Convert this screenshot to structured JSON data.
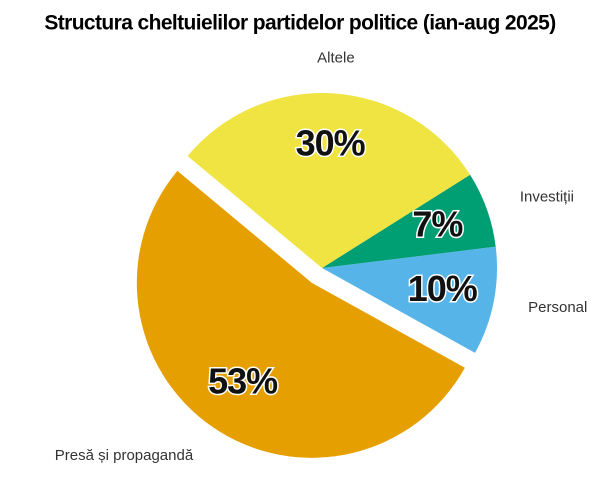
{
  "chart_data": {
    "type": "pie",
    "title": "Structura cheltuielilor partidelor politice (ian-aug 2025)",
    "categories": [
      "Personal",
      "Investiții",
      "Altele",
      "Presă și propagandă"
    ],
    "values": [
      10,
      7,
      30,
      53
    ],
    "value_labels": [
      "10%",
      "7%",
      "30%",
      "53%"
    ],
    "colors": [
      "#56b4e9",
      "#009e73",
      "#f0e442",
      "#e69f00"
    ],
    "exploded": [
      false,
      false,
      false,
      true
    ]
  }
}
